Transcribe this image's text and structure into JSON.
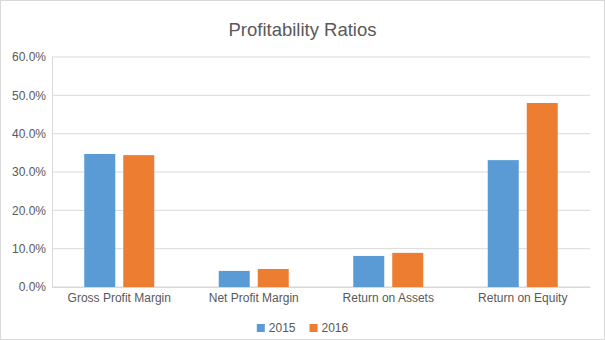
{
  "chart_data": {
    "type": "bar",
    "title": "Profitability Ratios",
    "categories": [
      "Gross Profit Margin",
      "Net Profit Margin",
      "Return on Assets",
      "Return on Equity"
    ],
    "series": [
      {
        "name": "2015",
        "color": "#5b9bd5",
        "values": [
          34.7,
          4.2,
          8.1,
          33.1
        ]
      },
      {
        "name": "2016",
        "color": "#ed7d31",
        "values": [
          34.4,
          4.7,
          8.9,
          48.0
        ]
      }
    ],
    "ylim": [
      0,
      60
    ],
    "yticks": [
      {
        "value": 0,
        "label": "0.0%"
      },
      {
        "value": 10,
        "label": "10.0%"
      },
      {
        "value": 20,
        "label": "20.0%"
      },
      {
        "value": 30,
        "label": "30.0%"
      },
      {
        "value": 40,
        "label": "40.0%"
      },
      {
        "value": 50,
        "label": "50.0%"
      },
      {
        "value": 60,
        "label": "60.0%"
      }
    ],
    "grid": true,
    "legend": "bottom"
  }
}
